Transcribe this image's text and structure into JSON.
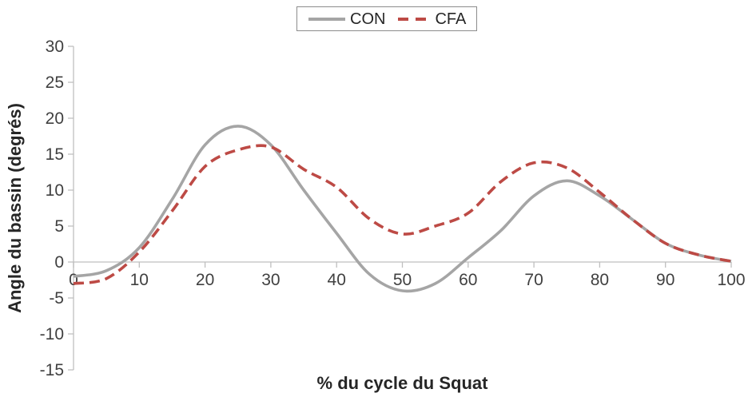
{
  "figure": {
    "background": "#FFFFFF"
  },
  "legend": {
    "border_color": "#8C8C8C"
  },
  "chart_data": {
    "type": "line",
    "title": "",
    "xlabel": "% du cycle du Squat",
    "ylabel": "Angle du bassin (degrés)",
    "xlim": [
      0,
      100
    ],
    "ylim": [
      -15,
      30
    ],
    "x_ticks": [
      0,
      10,
      20,
      30,
      40,
      50,
      60,
      70,
      80,
      90,
      100
    ],
    "y_ticks": [
      30,
      25,
      20,
      15,
      10,
      5,
      0,
      -5,
      -10,
      -15
    ],
    "grid": false,
    "legend_position": "top-center",
    "x": [
      0,
      5,
      10,
      15,
      20,
      25,
      30,
      35,
      40,
      45,
      50,
      55,
      60,
      65,
      70,
      75,
      80,
      85,
      90,
      95,
      100
    ],
    "series": [
      {
        "name": "CON",
        "color": "#A5A5A5",
        "line_style": "solid",
        "values": [
          -2,
          -1.2,
          2,
          8.7,
          16.3,
          18.9,
          16.3,
          10,
          4,
          -1.7,
          -4,
          -3,
          0.6,
          4.4,
          9.2,
          11.3,
          9.2,
          5.9,
          2.6,
          1,
          0.1
        ]
      },
      {
        "name": "CFA",
        "color": "#BD4A45",
        "line_style": "dashed",
        "values": [
          -3,
          -2.3,
          1.4,
          7.1,
          13.3,
          15.6,
          16.0,
          12.9,
          10.4,
          6,
          3.9,
          5,
          6.8,
          11.2,
          13.8,
          13.1,
          9.7,
          5.9,
          2.6,
          1,
          0.1
        ]
      }
    ],
    "colors": {
      "axis": "#BFBFBF",
      "tick_label": "#404040",
      "axis_title": "#262626"
    }
  }
}
